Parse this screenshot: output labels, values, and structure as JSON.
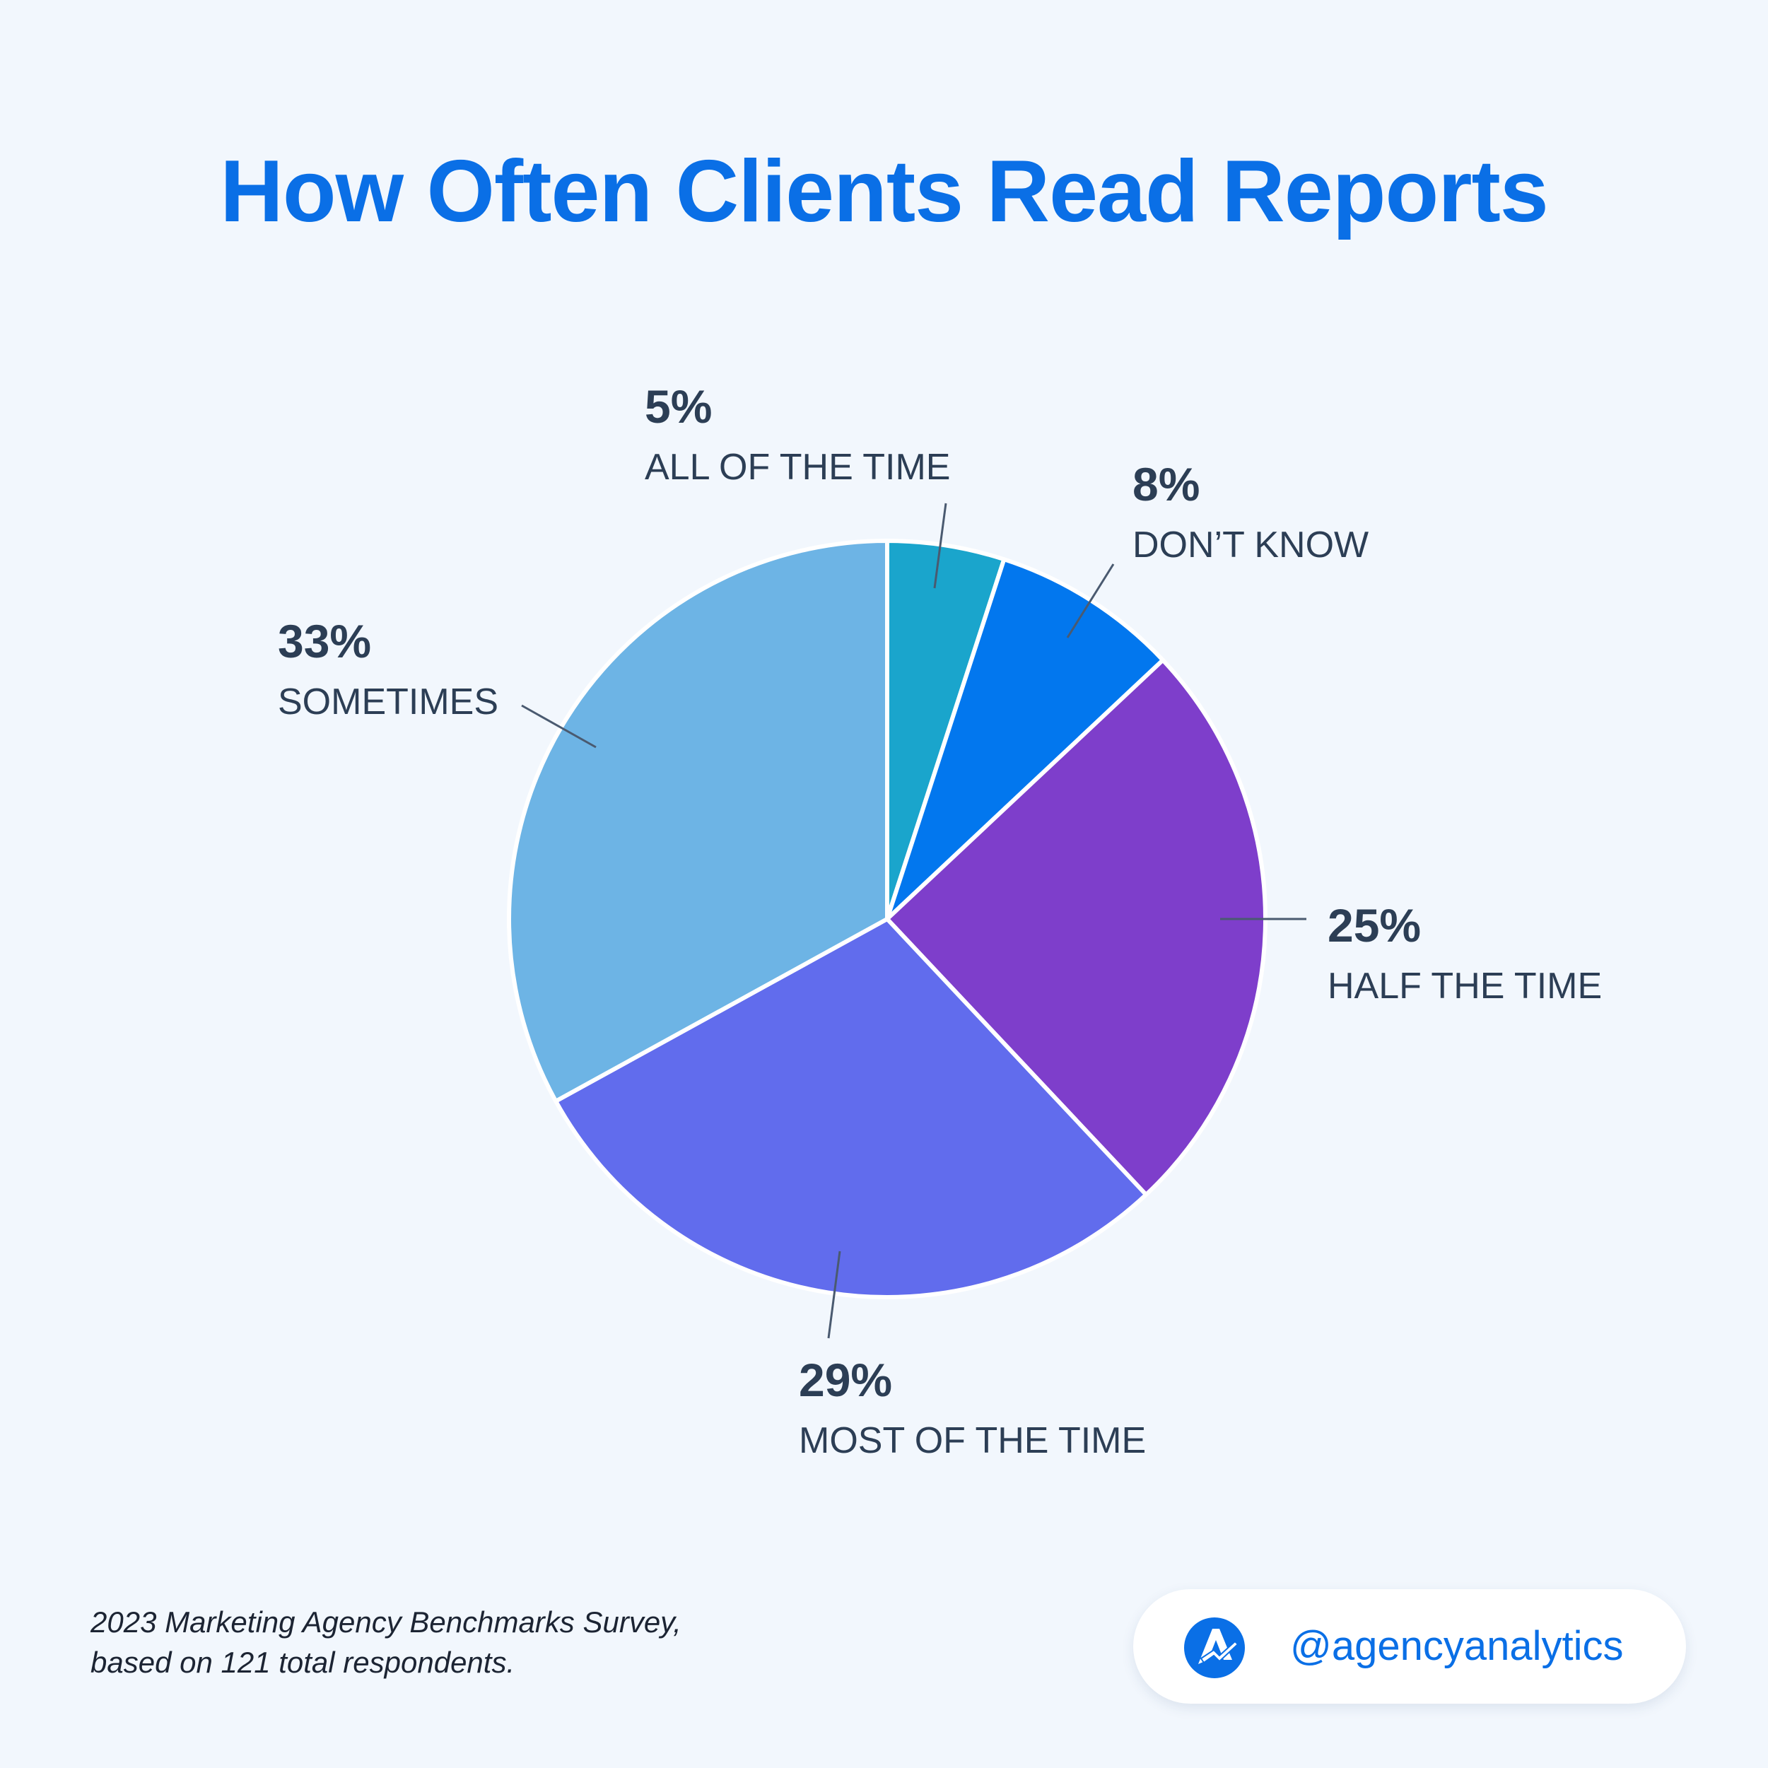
{
  "title": "How Often Clients Read Reports",
  "chart_data": {
    "type": "pie",
    "title": "How Often Clients Read Reports",
    "slices": [
      {
        "label": "ALL OF THE TIME",
        "value": 5,
        "value_label": "5%",
        "color": "#1aa5cc"
      },
      {
        "label": "DON’T KNOW",
        "value": 8,
        "value_label": "8%",
        "color": "#0277ee"
      },
      {
        "label": "HALF THE TIME",
        "value": 25,
        "value_label": "25%",
        "color": "#7e3ecb"
      },
      {
        "label": "MOST OF THE TIME",
        "value": 29,
        "value_label": "29%",
        "color": "#616ced"
      },
      {
        "label": "SOMETIMES",
        "value": 33,
        "value_label": "33%",
        "color": "#6db4e5"
      }
    ]
  },
  "footnote": {
    "line1": "2023 Marketing Agency Benchmarks Survey,",
    "line2": "based on 121 total respondents."
  },
  "brand": {
    "handle": "@agencyanalytics",
    "logo_icon": "agencyanalytics-logo-icon",
    "color": "#0a6fe6"
  }
}
